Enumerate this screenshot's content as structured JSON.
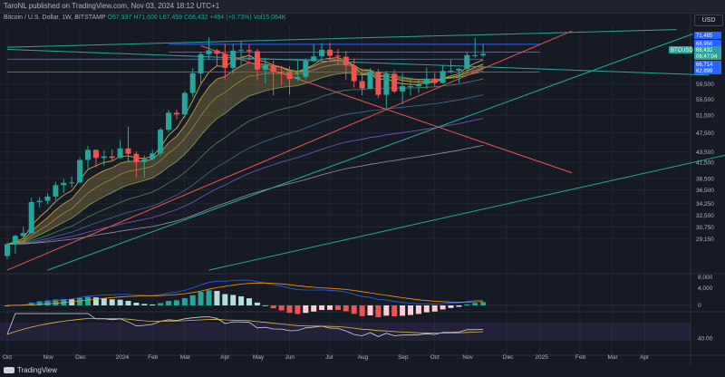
{
  "header": {
    "publisher": "TaroNL published on TradingView.com, Nov 03, 2024 18:12 UTC+1",
    "symbol_title": "Bitcoin / U.S. Dollar, 1W, BITSTAMP",
    "ohlc": "O67,937 H71,600 L67,459 C68,432",
    "change": "+494 (+0.73%)",
    "volume": "Vol15.064K",
    "currency": "USD"
  },
  "footer": {
    "brand": "TradingView"
  },
  "colors": {
    "up": "#26a69a",
    "down": "#ef5350",
    "bg": "#161a25"
  },
  "chart_data": {
    "type": "candlestick",
    "title": "Bitcoin / U.S. Dollar, 1W, BITSTAMP",
    "ylim": [
      25000,
      78000
    ],
    "y_scale": "log",
    "y_ticks": [
      29150,
      30750,
      32500,
      34250,
      36500,
      38500,
      41500,
      43500,
      47500,
      51500,
      55500,
      59500
    ],
    "x_tick_labels": [
      "Oct",
      "Nov",
      "Dec",
      "2024",
      "Feb",
      "Mar",
      "Apr",
      "May",
      "Jun",
      "Jul",
      "Aug",
      "Sep",
      "Oct",
      "Nov",
      "Dec",
      "2025",
      "Feb",
      "Mar",
      "Apr"
    ],
    "x_tick_weeks": [
      0,
      5,
      9,
      14,
      18,
      22,
      27,
      31,
      35,
      40,
      44,
      49,
      53,
      57,
      62,
      66,
      71,
      75,
      79
    ],
    "price_tags": [
      {
        "label": "71,485",
        "value": 71485,
        "color": "#2962ff"
      },
      {
        "label": "68,956",
        "value": 68956,
        "color": "#2962ff"
      },
      {
        "label": "BTCUSD",
        "value": 68432,
        "color": "#26a69a"
      },
      {
        "label": "68,432",
        "value": 68432,
        "color": "#26a69a"
      },
      {
        "label": "06:47:04",
        "value": 67500,
        "color": "#26a69a"
      },
      {
        "label": "66,714",
        "value": 66714,
        "color": "#2962ff"
      },
      {
        "label": "62,899",
        "value": 62899,
        "color": "#2962ff"
      }
    ],
    "ohlc": [
      [
        26900,
        28600,
        26500,
        28400
      ],
      [
        28400,
        29700,
        27200,
        29500
      ],
      [
        29500,
        30800,
        29100,
        29900
      ],
      [
        29900,
        35200,
        29800,
        34500
      ],
      [
        34500,
        35300,
        33700,
        34700
      ],
      [
        34700,
        35900,
        34200,
        35400
      ],
      [
        35400,
        37900,
        34800,
        37300
      ],
      [
        37300,
        38400,
        36000,
        37700
      ],
      [
        37700,
        38800,
        36900,
        37800
      ],
      [
        37800,
        42400,
        37600,
        41900
      ],
      [
        41900,
        44700,
        40300,
        43900
      ],
      [
        43900,
        44000,
        40500,
        42300
      ],
      [
        42300,
        43800,
        40800,
        42600
      ],
      [
        42600,
        44000,
        41600,
        42300
      ],
      [
        42300,
        45900,
        42100,
        44200
      ],
      [
        44200,
        48900,
        41700,
        43100
      ],
      [
        43100,
        43600,
        38700,
        41500
      ],
      [
        41500,
        42800,
        38600,
        42100
      ],
      [
        42100,
        43900,
        41900,
        43200
      ],
      [
        43200,
        48600,
        42600,
        48200
      ],
      [
        48200,
        52800,
        47600,
        52100
      ],
      [
        52100,
        52900,
        50600,
        51700
      ],
      [
        51700,
        57600,
        50900,
        57100
      ],
      [
        57100,
        64000,
        56000,
        62500
      ],
      [
        62500,
        69000,
        59400,
        68300
      ],
      [
        68300,
        73700,
        66600,
        69500
      ],
      [
        69500,
        70000,
        64500,
        68400
      ],
      [
        68400,
        71500,
        60800,
        64100
      ],
      [
        64100,
        71600,
        62300,
        69400
      ],
      [
        69400,
        72700,
        64500,
        69600
      ],
      [
        69600,
        71300,
        66200,
        69200
      ],
      [
        69200,
        70000,
        60700,
        63600
      ],
      [
        63600,
        67200,
        59700,
        64900
      ],
      [
        64900,
        66300,
        56500,
        63000
      ],
      [
        63000,
        64700,
        59100,
        62900
      ],
      [
        62900,
        64500,
        56600,
        60900
      ],
      [
        60900,
        66400,
        60300,
        61500
      ],
      [
        61500,
        67000,
        60700,
        66200
      ],
      [
        66200,
        71500,
        65800,
        67600
      ],
      [
        67600,
        71900,
        66500,
        69700
      ],
      [
        69700,
        71900,
        66200,
        67800
      ],
      [
        67800,
        70000,
        64800,
        67500
      ],
      [
        67500,
        69300,
        60600,
        64800
      ],
      [
        64800,
        66900,
        58500,
        60300
      ],
      [
        60300,
        62300,
        56500,
        58300
      ],
      [
        58300,
        64000,
        58100,
        63000
      ],
      [
        63000,
        63800,
        55800,
        56600
      ],
      [
        56600,
        63200,
        53300,
        62400
      ],
      [
        62400,
        63500,
        57000,
        57500
      ],
      [
        57500,
        62600,
        54200,
        58900
      ],
      [
        58900,
        61000,
        56300,
        58900
      ],
      [
        58900,
        60700,
        57100,
        59500
      ],
      [
        59500,
        64200,
        58200,
        61000
      ],
      [
        61000,
        62600,
        58700,
        59800
      ],
      [
        59800,
        64900,
        59600,
        63200
      ],
      [
        63200,
        66500,
        62400,
        63300
      ],
      [
        63300,
        64100,
        59800,
        63800
      ],
      [
        63800,
        69100,
        62300,
        68000
      ],
      [
        68000,
        73600,
        67200,
        68000
      ],
      [
        67900,
        71600,
        67400,
        68400
      ]
    ]
  }
}
